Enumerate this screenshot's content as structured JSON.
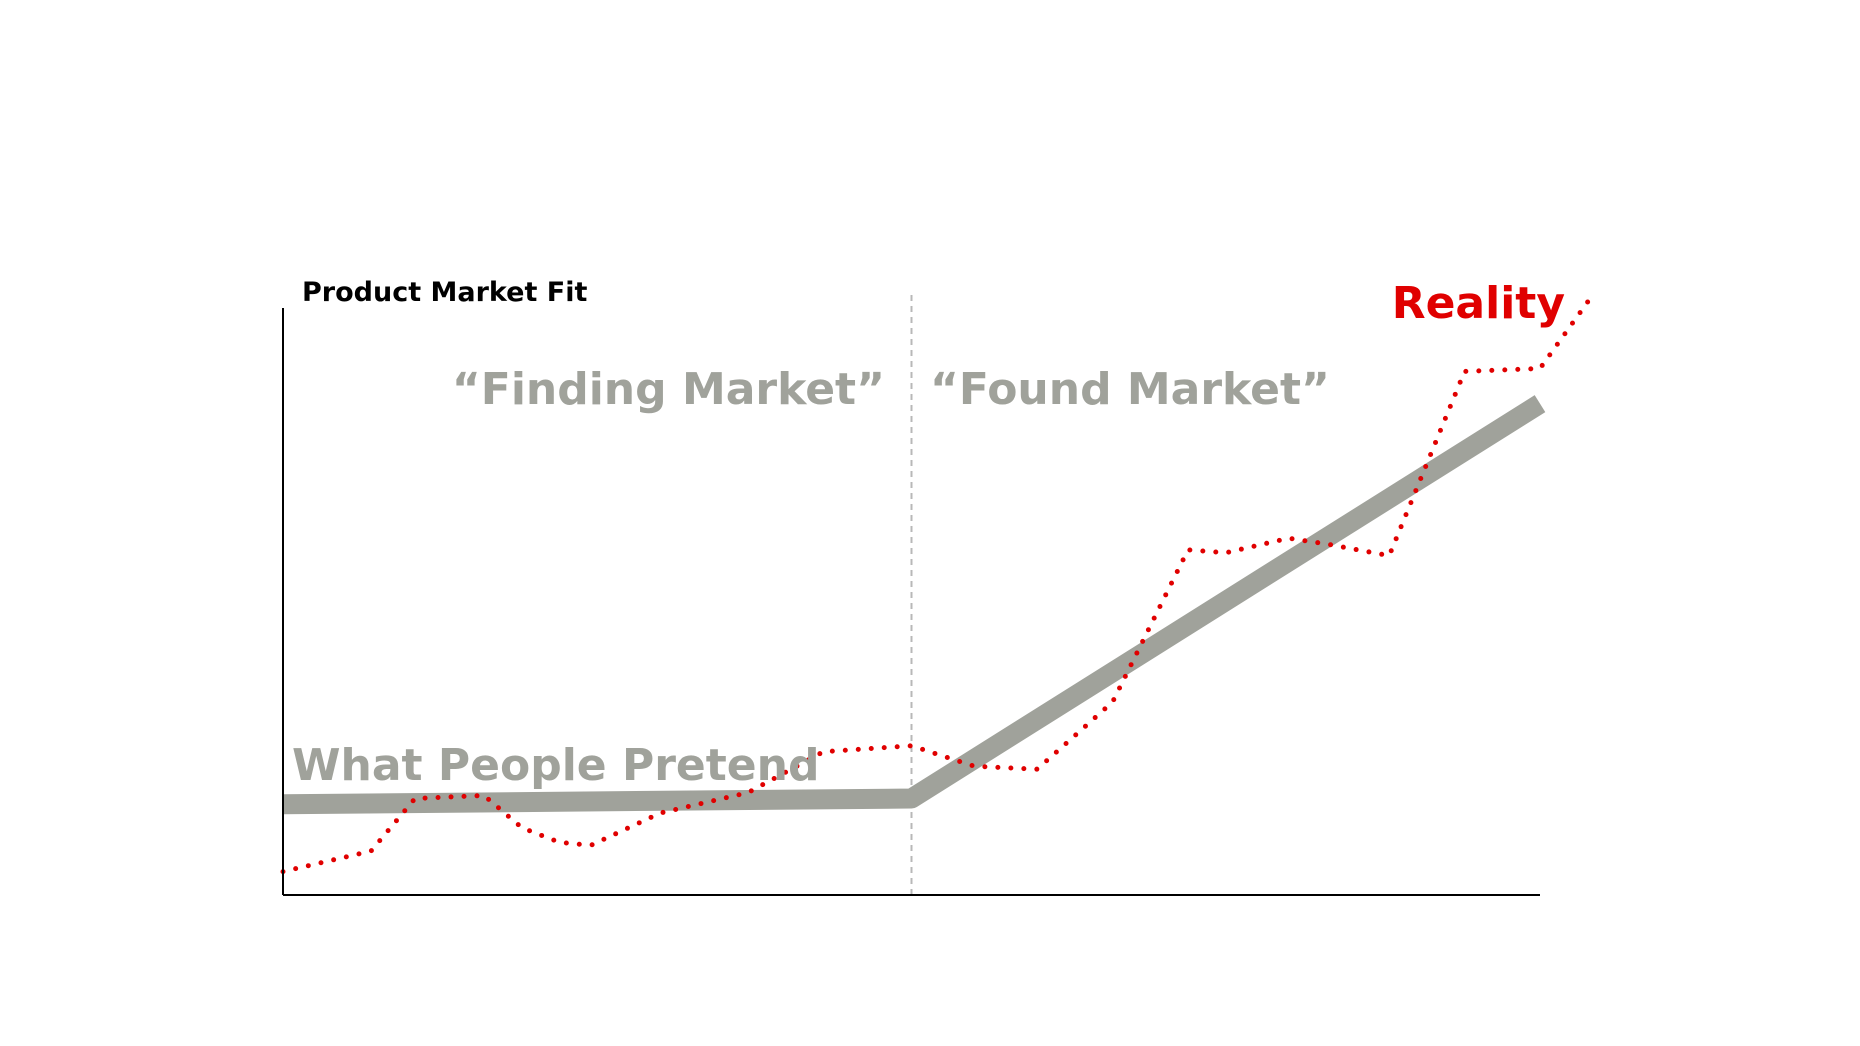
{
  "chart_data": {
    "type": "line",
    "title": "",
    "xlabel": "",
    "ylabel": "Product Market Fit",
    "xlim": [
      0,
      100
    ],
    "ylim": [
      0,
      100
    ],
    "grid": false,
    "divider_x": 50,
    "phases": [
      {
        "label": "“Finding Market”"
      },
      {
        "label": "“Found Market”"
      }
    ],
    "series": [
      {
        "name": "What People Pretend",
        "color": "#a0a29b",
        "style": "solid",
        "points": [
          [
            0,
            15.5
          ],
          [
            50,
            16.5
          ],
          [
            100,
            84
          ]
        ]
      },
      {
        "name": "Reality",
        "color": "#e00000",
        "style": "dotted",
        "points": [
          [
            0,
            4
          ],
          [
            7,
            7.5
          ],
          [
            10.5,
            16.5
          ],
          [
            16,
            17
          ],
          [
            19,
            11.5
          ],
          [
            22,
            9
          ],
          [
            24.5,
            8.5
          ],
          [
            30,
            14
          ],
          [
            37,
            17.5
          ],
          [
            43,
            24.5
          ],
          [
            50,
            25.5
          ],
          [
            55,
            22
          ],
          [
            60,
            21.5
          ],
          [
            66,
            33
          ],
          [
            72,
            59
          ],
          [
            75,
            58.5
          ],
          [
            80,
            61
          ],
          [
            83,
            60
          ],
          [
            88,
            58
          ],
          [
            94,
            89.5
          ],
          [
            100,
            90
          ],
          [
            104,
            102
          ]
        ]
      }
    ]
  }
}
